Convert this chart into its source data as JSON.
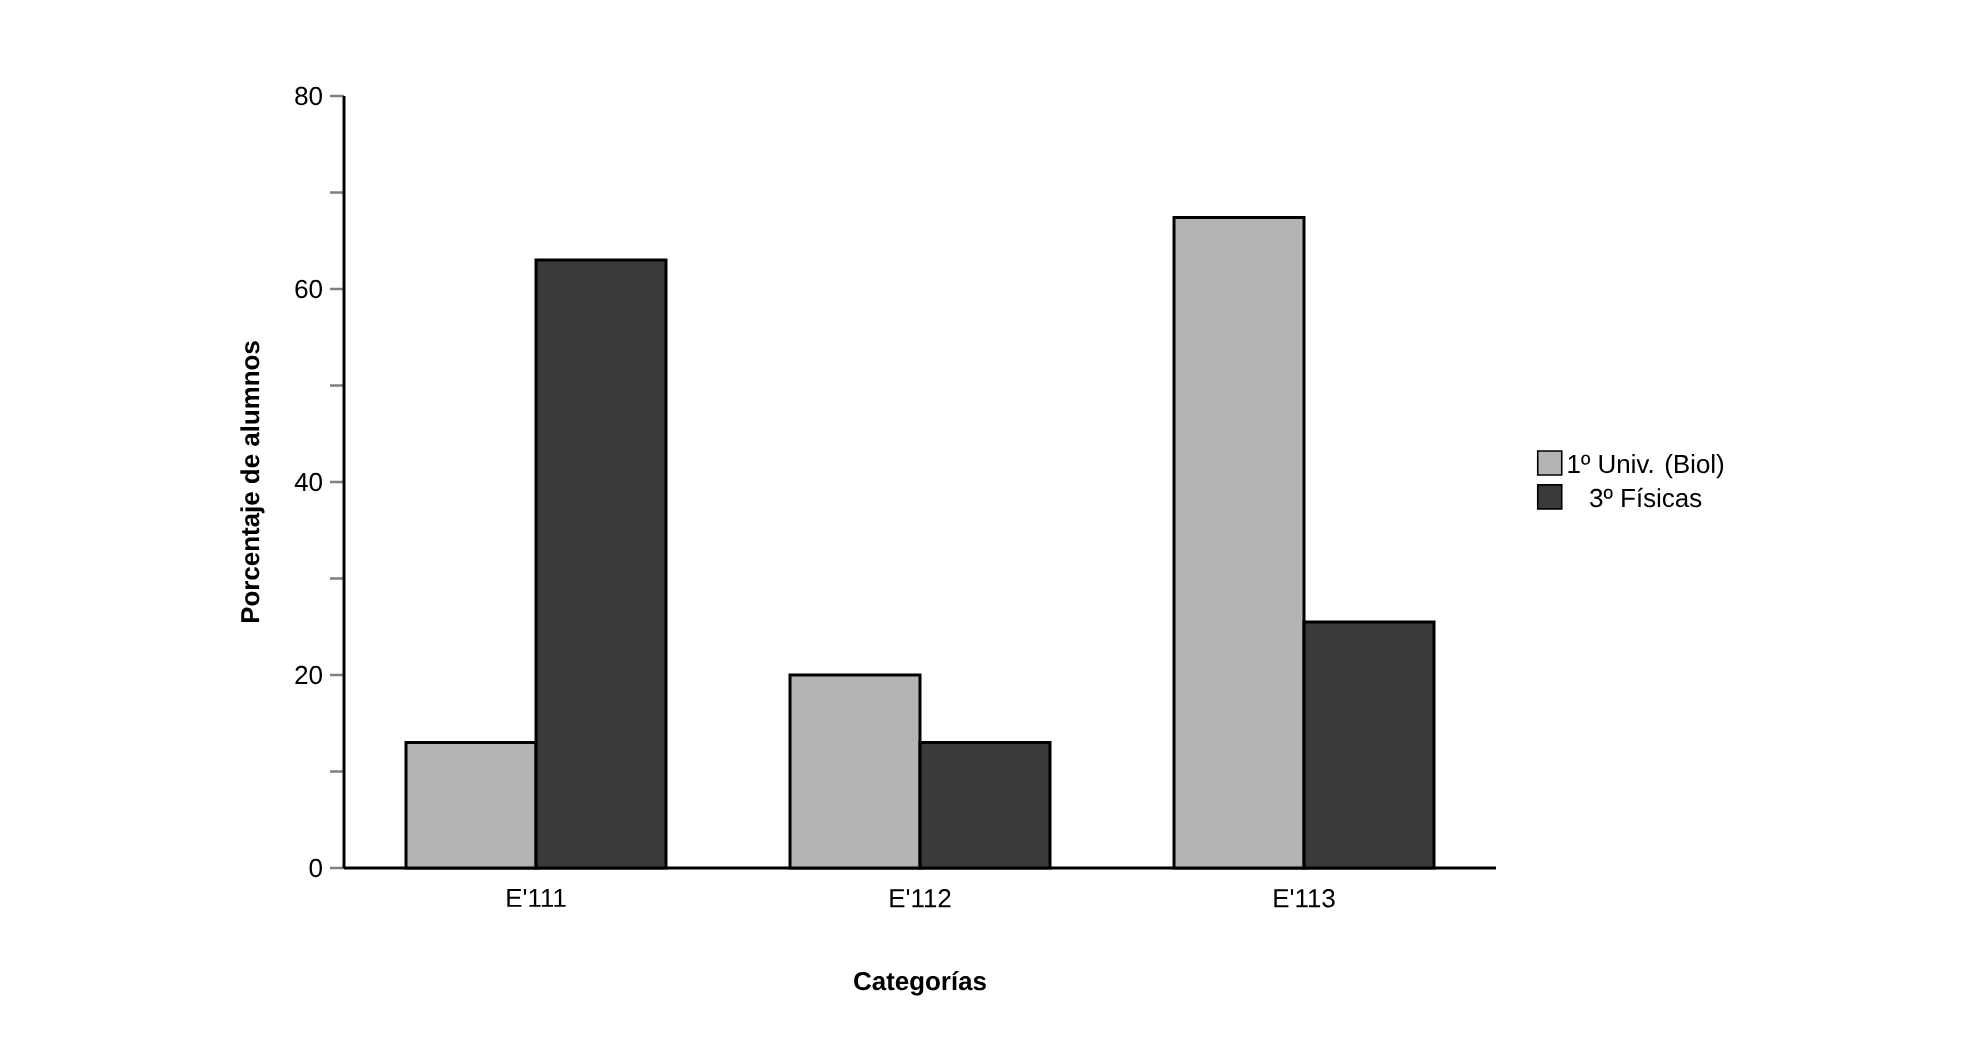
{
  "chart_data": {
    "type": "bar",
    "xlabel": "Categorías",
    "ylabel": "Porcentaje de alumnos",
    "categories": [
      "E'111",
      "E'112",
      "E'113"
    ],
    "series": [
      {
        "name": "1º Univ. (Biol)",
        "color": "#b4b4b4",
        "values": [
          13,
          20,
          67.4
        ]
      },
      {
        "name": "3º Físicas",
        "color": "#3a3a3a",
        "values": [
          63,
          13,
          25.5
        ]
      }
    ],
    "ylim": [
      0,
      80
    ],
    "yticks": [
      0,
      {
        "value": 10,
        "label": null
      },
      20,
      {
        "value": 30,
        "label": null
      },
      40,
      {
        "value": 50,
        "label": null
      },
      60,
      {
        "value": 70,
        "label": null
      },
      80
    ],
    "grid": false,
    "legend": "right"
  }
}
